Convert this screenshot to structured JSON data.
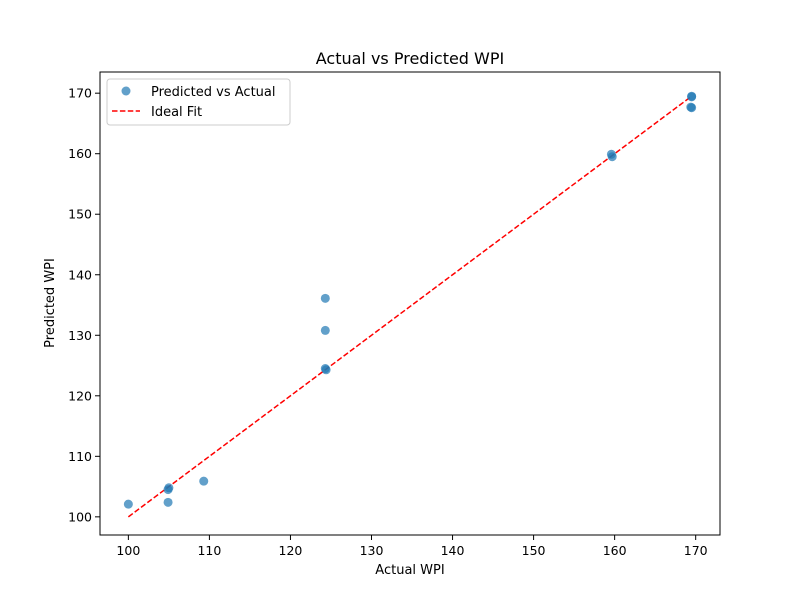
{
  "chart_data": {
    "type": "scatter",
    "title": "Actual vs Predicted WPI",
    "xlabel": "Actual WPI",
    "ylabel": "Predicted WPI",
    "xlim": [
      96.5,
      173.0
    ],
    "ylim": [
      97.0,
      173.5
    ],
    "xticks": [
      100,
      110,
      120,
      130,
      140,
      150,
      160,
      170
    ],
    "yticks": [
      100,
      110,
      120,
      130,
      140,
      150,
      160,
      170
    ],
    "grid": false,
    "legend_position": "top-left",
    "series": [
      {
        "name": "Predicted vs Actual",
        "kind": "scatter",
        "color": "#1f77b4",
        "x": [
          100.0,
          104.9,
          105.0,
          104.9,
          109.3,
          124.3,
          124.3,
          124.4,
          124.3,
          159.6,
          159.7,
          169.5,
          169.5,
          169.5,
          169.4
        ],
        "y": [
          102.1,
          104.5,
          104.8,
          102.4,
          105.9,
          136.1,
          130.8,
          124.3,
          124.5,
          159.9,
          159.5,
          169.5,
          169.4,
          167.6,
          167.7
        ]
      },
      {
        "name": "Ideal Fit",
        "kind": "line",
        "style": "dashed",
        "color": "#ff0000",
        "x": [
          100.0,
          169.5
        ],
        "y": [
          100.0,
          169.5
        ]
      }
    ]
  }
}
